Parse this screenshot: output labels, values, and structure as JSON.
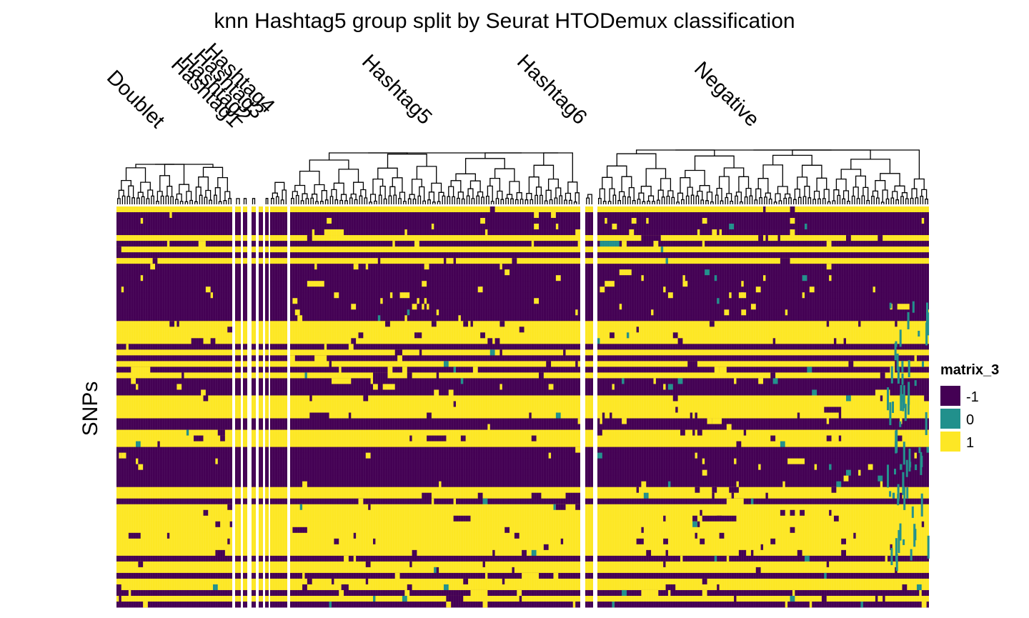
{
  "chart_data": {
    "type": "heatmap",
    "title": "knn Hashtag5 group split by Seurat HTODemux classification",
    "ylabel": "SNPs",
    "column_groups": [
      {
        "name": "Doublet",
        "cells": 46
      },
      {
        "name": "Hashtag1",
        "cells": 4
      },
      {
        "name": "Hashtag2",
        "cells": 3
      },
      {
        "name": "Hashtag3",
        "cells": 2
      },
      {
        "name": "Hashtag4",
        "cells": 6
      },
      {
        "name": "Hashtag5",
        "cells": 115
      },
      {
        "name": "Hashtag6",
        "cells": 1
      },
      {
        "name": "Negative",
        "cells": 128
      }
    ],
    "column_labels": [
      "Doublet",
      "Hashtag1",
      "Hashtag2",
      "Hashtag3",
      "Hashtag4",
      "Hashtag5",
      "Hashtag6",
      "Negative"
    ],
    "n_rows": 70,
    "row_pattern": [
      1,
      -1,
      -1,
      -1,
      -1,
      1,
      -1,
      1,
      -1,
      1,
      -1,
      -1,
      -1,
      -1,
      -1,
      -1,
      -1,
      -1,
      -1,
      -1,
      1,
      1,
      1,
      1,
      -1,
      1,
      -1,
      1,
      -1,
      1,
      -1,
      -1,
      -1,
      1,
      1,
      1,
      1,
      -1,
      -1,
      1,
      1,
      1,
      -1,
      -1,
      -1,
      -1,
      -1,
      -1,
      -1,
      1,
      1,
      -1,
      1,
      1,
      1,
      1,
      1,
      1,
      1,
      1,
      1,
      -1,
      1,
      1,
      -1,
      1,
      1,
      -1,
      1,
      -1
    ],
    "legend": {
      "title": "matrix_3",
      "entries": [
        {
          "label": "-1",
          "value": -1,
          "color": "#440154"
        },
        {
          "label": "0",
          "value": 0,
          "color": "#21908C"
        },
        {
          "label": "1",
          "value": 1,
          "color": "#FDE725"
        }
      ]
    },
    "dendrogram": true,
    "legend_position": "right"
  }
}
